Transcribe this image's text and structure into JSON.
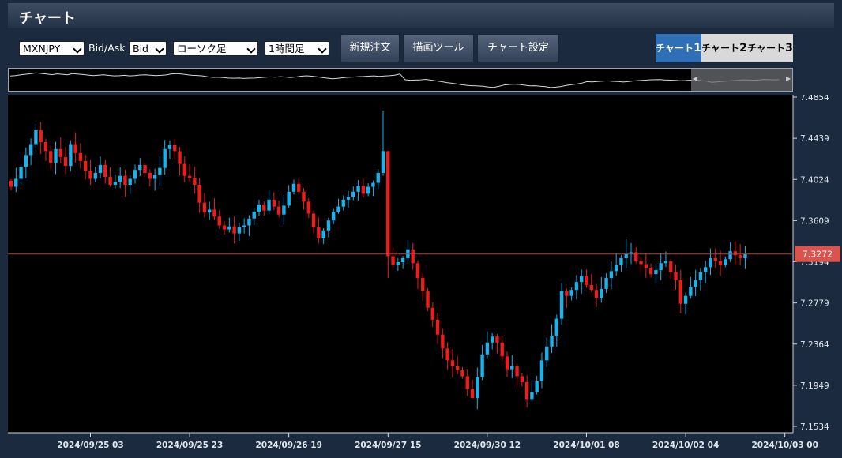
{
  "header": {
    "title": "チャート"
  },
  "toolbar": {
    "symbol": "MXNJPY",
    "bidask_label": "Bid/Ask",
    "bidask_value": "Bid",
    "chart_type": "ローソク足",
    "timeframe": "1時間足",
    "new_order": "新規注文",
    "drawing_tools": "描画ツール",
    "chart_settings": "チャート設定"
  },
  "tabs": [
    {
      "label": "チャート",
      "num": "1",
      "active": true
    },
    {
      "label": "チャート",
      "num": "2",
      "active": false
    },
    {
      "label": "チャート",
      "num": "3",
      "active": false
    }
  ],
  "colors": {
    "up": "#1ab3ec",
    "down": "#ee1c1c",
    "current_line": "#c73a3a",
    "current_tag": "#d9534f"
  },
  "chart_data": {
    "type": "candlestick",
    "symbol": "MXNJPY",
    "timeframe": "1時間足",
    "current_price": "7.3272",
    "ylim": [
      7.1534,
      7.4854
    ],
    "y_ticks": [
      "7.4854",
      "7.4439",
      "7.4024",
      "7.3609",
      "7.3194",
      "7.2779",
      "7.2364",
      "7.1949",
      "7.1534"
    ],
    "x_ticks": [
      {
        "label": "2024/09/25 03",
        "bar": 16
      },
      {
        "label": "2024/09/25 23",
        "bar": 36
      },
      {
        "label": "2024/09/26 19",
        "bar": 56
      },
      {
        "label": "2024/09/27 15",
        "bar": 76
      },
      {
        "label": "2024/09/30 12",
        "bar": 96
      },
      {
        "label": "2024/10/01 08",
        "bar": 116
      },
      {
        "label": "2024/10/02 04",
        "bar": 136
      },
      {
        "label": "2024/10/03 00",
        "bar": 156
      }
    ],
    "closes": [
      7.395,
      7.403,
      7.415,
      7.427,
      7.438,
      7.452,
      7.44,
      7.431,
      7.419,
      7.433,
      7.425,
      7.416,
      7.438,
      7.429,
      7.421,
      7.411,
      7.403,
      7.409,
      7.417,
      7.405,
      7.397,
      7.4,
      7.406,
      7.397,
      7.403,
      7.412,
      7.417,
      7.409,
      7.403,
      7.407,
      7.414,
      7.433,
      7.437,
      7.431,
      7.418,
      7.406,
      7.404,
      7.397,
      7.379,
      7.369,
      7.372,
      7.365,
      7.356,
      7.352,
      7.355,
      7.348,
      7.354,
      7.356,
      7.363,
      7.37,
      7.377,
      7.371,
      7.382,
      7.375,
      7.367,
      7.376,
      7.39,
      7.398,
      7.39,
      7.38,
      7.368,
      7.354,
      7.343,
      7.351,
      7.361,
      7.37,
      7.375,
      7.382,
      7.385,
      7.39,
      7.396,
      7.388,
      7.395,
      7.399,
      7.409,
      7.431,
      7.325,
      7.316,
      7.319,
      7.323,
      7.332,
      7.318,
      7.303,
      7.29,
      7.273,
      7.261,
      7.246,
      7.232,
      7.22,
      7.214,
      7.21,
      7.204,
      7.191,
      7.182,
      7.203,
      7.226,
      7.238,
      7.244,
      7.238,
      7.224,
      7.211,
      7.214,
      7.204,
      7.198,
      7.181,
      7.188,
      7.199,
      7.22,
      7.234,
      7.245,
      7.262,
      7.29,
      7.285,
      7.291,
      7.299,
      7.305,
      7.296,
      7.291,
      7.283,
      7.292,
      7.303,
      7.31,
      7.316,
      7.323,
      7.327,
      7.329,
      7.32,
      7.317,
      7.313,
      7.307,
      7.311,
      7.318,
      7.32,
      7.309,
      7.301,
      7.277,
      7.285,
      7.294,
      7.301,
      7.309,
      7.314,
      7.323,
      7.32,
      7.316,
      7.322,
      7.33,
      7.326,
      7.323,
      7.327
    ],
    "wick_notes": "High spikes near 7.472 (09/27), low near 7.182 (09/30), spike to 7.342 (10/01)"
  }
}
